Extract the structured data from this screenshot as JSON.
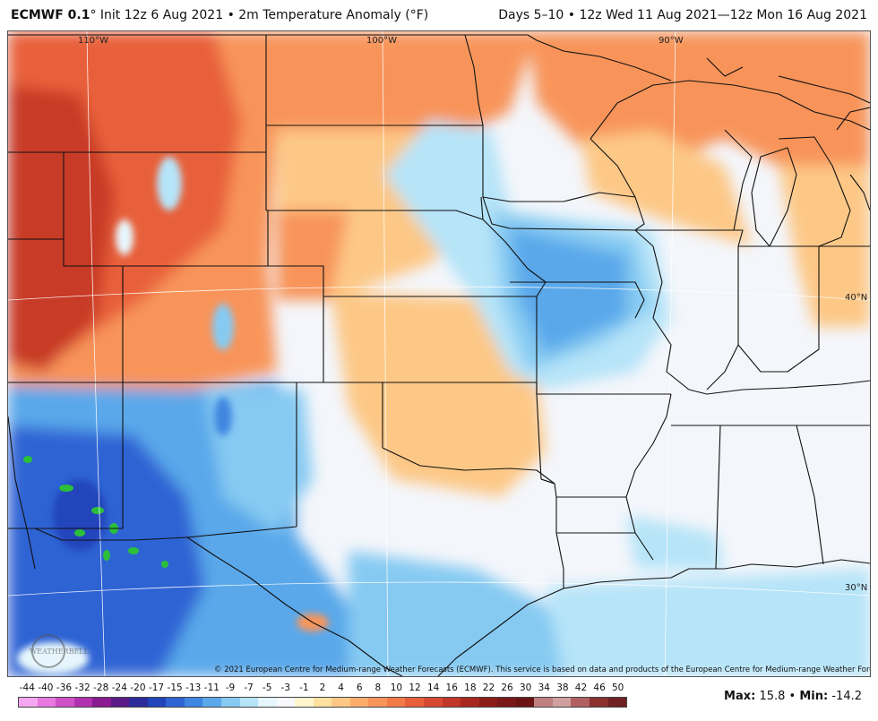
{
  "header": {
    "model": "ECMWF 0.1",
    "init": "° Init 12z 6 Aug 2021 • 2m Temperature Anomaly (°F)",
    "period": "Days 5–10 • 12z Wed 11 Aug 2021—12z Mon 16 Aug 2021"
  },
  "grid_labels": {
    "lon110": "110°W",
    "lon100": "100°W",
    "lon90": "90°W",
    "lat40": "40°N",
    "lat30": "30°N"
  },
  "logo_text": "WEATHERBELL",
  "credit": "© 2021 European Centre for Medium-range Weather Forecasts (ECMWF). This service is based on data and products of the European Centre for Medium-range Weather Forecasts (ECMWF).",
  "legend": {
    "labels": [
      "-44",
      "-40",
      "-36",
      "-32",
      "-28",
      "-24",
      "-20",
      "-17",
      "-15",
      "-13",
      "-11",
      "-9",
      "-7",
      "-5",
      "-3",
      "-1",
      "2",
      "4",
      "6",
      "8",
      "10",
      "12",
      "14",
      "16",
      "18",
      "22",
      "26",
      "30",
      "34",
      "38",
      "42",
      "46",
      "50"
    ],
    "colors": [
      "#f5a6f0",
      "#e678e0",
      "#d050c8",
      "#b030b0",
      "#8a1a90",
      "#5a1a88",
      "#2c2c9a",
      "#2244bb",
      "#2f64d4",
      "#3f86e0",
      "#5aa8ea",
      "#86caf2",
      "#b6e4f8",
      "#e6f6fc",
      "#f6f8fc",
      "#fff6d0",
      "#ffe2a0",
      "#fdc886",
      "#fbae6c",
      "#f8945a",
      "#f27a48",
      "#e8603a",
      "#d64830",
      "#c03628",
      "#a82820",
      "#8c1c18",
      "#7a1818",
      "#6a1414",
      "#c08080",
      "#d0a0a0",
      "#b06060",
      "#8c3030",
      "#702020"
    ]
  },
  "stats": {
    "max_label": "Max:",
    "max_value": "15.8",
    "min_label": "Min:",
    "min_value": "-14.2"
  },
  "colors": {
    "warm_strong": "#d84a2a",
    "warm": "#f8945a",
    "warm_light": "#fdc886",
    "neutral": "#f4f6fb",
    "cool_light": "#b6e4f8",
    "cool": "#5aa8ea",
    "cool_strong": "#2f64d4",
    "green": "#2bbf3a"
  }
}
